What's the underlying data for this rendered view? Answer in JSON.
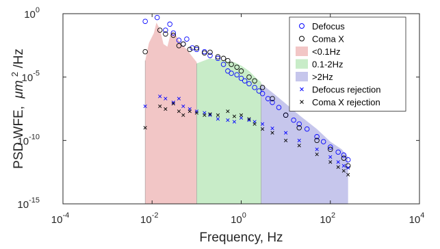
{
  "chart_data": {
    "type": "scatter",
    "title": "",
    "xlabel": "Frequency, Hz",
    "ylabel_prefix": "PSD WFE,",
    "ylabel_mu": "μm",
    "ylabel_exp": "2",
    "ylabel_suffix": "/Hz",
    "xscale": "log",
    "yscale": "log",
    "xlim": [
      0.0001,
      10000
    ],
    "ylim": [
      1e-15,
      1
    ],
    "x_ticks": [
      {
        "base": "10",
        "exp": "-4",
        "value": 0.0001
      },
      {
        "base": "10",
        "exp": "-2",
        "value": 0.01
      },
      {
        "base": "10",
        "exp": "0",
        "value": 1
      },
      {
        "base": "10",
        "exp": "2",
        "value": 100
      },
      {
        "base": "10",
        "exp": "4",
        "value": 10000
      }
    ],
    "y_ticks": [
      {
        "base": "10",
        "exp": "0",
        "value": 1
      },
      {
        "base": "10",
        "exp": "-5",
        "value": 1e-05
      },
      {
        "base": "10",
        "exp": "-10",
        "value": 1e-10
      },
      {
        "base": "10",
        "exp": "-15",
        "value": 1e-15
      }
    ],
    "grid": false,
    "legend_position": "top-right",
    "bands": [
      {
        "name": "<0.1Hz",
        "color": "#f2c6c6",
        "x_range": [
          0.007,
          0.1
        ],
        "upper_envelope": [
          [
            0.007,
            0.0002
          ],
          [
            0.0085,
            0.005
          ],
          [
            0.011,
            0.03
          ],
          [
            0.0125,
            0.2
          ],
          [
            0.015,
            0.06
          ],
          [
            0.018,
            0.004
          ],
          [
            0.022,
            0.0025
          ],
          [
            0.027,
            0.04
          ],
          [
            0.034,
            0.02
          ],
          [
            0.045,
            0.004
          ],
          [
            0.06,
            0.0015
          ],
          [
            0.08,
            0.0004
          ],
          [
            0.1,
            0.00015
          ]
        ]
      },
      {
        "name": "0.1-2Hz",
        "color": "#c8ecc8",
        "x_range": [
          0.1,
          2.8
        ],
        "upper_envelope": [
          [
            0.1,
            0.00012
          ],
          [
            0.2,
            0.0003
          ],
          [
            0.4,
            0.0002
          ],
          [
            0.7,
            0.00015
          ],
          [
            1,
            8e-05
          ],
          [
            1.5,
            3e-05
          ],
          [
            2.2,
            8e-06
          ],
          [
            2.8,
            4e-06
          ]
        ]
      },
      {
        "name": ">2Hz",
        "color": "#c6c6ec",
        "x_range": [
          2.8,
          250
        ],
        "upper_envelope": [
          [
            2.8,
            3e-06
          ],
          [
            5,
            6e-07
          ],
          [
            10,
            8e-08
          ],
          [
            20,
            1e-08
          ],
          [
            50,
            8e-10
          ],
          [
            100,
            8e-11
          ],
          [
            180,
            2e-11
          ],
          [
            250,
            5e-12
          ]
        ]
      }
    ],
    "series": [
      {
        "name": "Defocus",
        "marker": "circle",
        "color": "#0000ff",
        "x": [
          0.007,
          0.013,
          0.02,
          0.025,
          0.03,
          0.04,
          0.05,
          0.06,
          0.08,
          0.1,
          0.15,
          0.2,
          0.3,
          0.4,
          0.5,
          0.6,
          0.8,
          1.0,
          1.2,
          1.5,
          2,
          2.5,
          3,
          4,
          5,
          7,
          10,
          15,
          20,
          30,
          50,
          70,
          100,
          150,
          200,
          250
        ],
        "y": [
          0.25,
          0.5,
          0.05,
          0.15,
          0.03,
          0.008,
          0.004,
          0.01,
          0.002,
          0.0015,
          0.001,
          0.0005,
          0.0003,
          0.0001,
          3e-05,
          2e-05,
          1.5e-05,
          8e-06,
          5e-06,
          3e-06,
          1.5e-06,
          8e-07,
          5e-07,
          2e-07,
          1e-07,
          4e-08,
          1e-08,
          4e-09,
          2e-09,
          8e-10,
          2e-10,
          8e-11,
          3e-11,
          1.2e-11,
          7e-12,
          3e-12
        ]
      },
      {
        "name": "Coma X",
        "marker": "circle",
        "color": "#000000",
        "x": [
          0.007,
          0.015,
          0.02,
          0.03,
          0.04,
          0.05,
          0.07,
          0.1,
          0.15,
          0.2,
          0.3,
          0.4,
          0.5,
          0.6,
          0.8,
          1.0,
          1.5,
          2,
          3,
          5,
          10,
          20,
          50,
          100,
          200,
          250
        ],
        "y": [
          0.001,
          0.05,
          0.025,
          0.02,
          0.003,
          0.004,
          0.0015,
          0.002,
          0.0008,
          0.0009,
          0.0004,
          0.0003,
          0.0002,
          0.0001,
          6e-05,
          3e-05,
          1e-05,
          5e-06,
          1.5e-06,
          2e-07,
          1e-08,
          1e-09,
          1e-10,
          2e-11,
          4e-12,
          1e-12
        ]
      },
      {
        "name": "Defocus rejection",
        "marker": "x",
        "color": "#0000ff",
        "x": [
          0.007,
          0.015,
          0.02,
          0.03,
          0.04,
          0.05,
          0.07,
          0.1,
          0.15,
          0.2,
          0.3,
          0.5,
          0.7,
          1.0,
          1.5,
          2,
          3,
          5,
          10,
          20,
          50,
          100,
          150,
          200,
          250
        ],
        "y": [
          5e-08,
          3e-07,
          2e-07,
          1e-07,
          2e-07,
          5e-08,
          3e-08,
          2e-08,
          1.5e-08,
          1e-08,
          5e-09,
          4e-09,
          3e-09,
          6e-09,
          4e-09,
          3e-09,
          2e-09,
          9e-10,
          4e-10,
          1e-10,
          2e-11,
          5e-12,
          2e-12,
          1e-12,
          7e-13
        ]
      },
      {
        "name": "Coma X rejection",
        "marker": "x",
        "color": "#000000",
        "x": [
          0.007,
          0.015,
          0.02,
          0.03,
          0.04,
          0.05,
          0.07,
          0.1,
          0.15,
          0.2,
          0.3,
          0.5,
          0.7,
          1.0,
          1.5,
          2,
          3,
          5,
          10,
          20,
          50,
          100,
          150,
          200,
          250
        ],
        "y": [
          1e-09,
          5e-08,
          3e-08,
          8e-08,
          2e-08,
          1e-08,
          2e-08,
          1.5e-08,
          1e-08,
          1.2e-08,
          1e-08,
          2e-08,
          8e-09,
          1e-08,
          5e-09,
          2e-09,
          8e-10,
          4e-10,
          1e-10,
          4e-11,
          8e-12,
          2e-12,
          8e-13,
          4e-13,
          2e-13
        ]
      }
    ],
    "legend": [
      {
        "label": "Defocus",
        "kind": "circle",
        "color": "#0000ff"
      },
      {
        "label": "Coma X",
        "kind": "circle",
        "color": "#000000"
      },
      {
        "label": "<0.1Hz",
        "kind": "patch",
        "color": "#f2c6c6"
      },
      {
        "label": "0.1-2Hz",
        "kind": "patch",
        "color": "#c8ecc8"
      },
      {
        "label": ">2Hz",
        "kind": "patch",
        "color": "#c6c6ec"
      },
      {
        "label": "Defocus rejection",
        "kind": "x",
        "color": "#0000ff"
      },
      {
        "label": "Coma X rejection",
        "kind": "x",
        "color": "#000000"
      }
    ]
  }
}
